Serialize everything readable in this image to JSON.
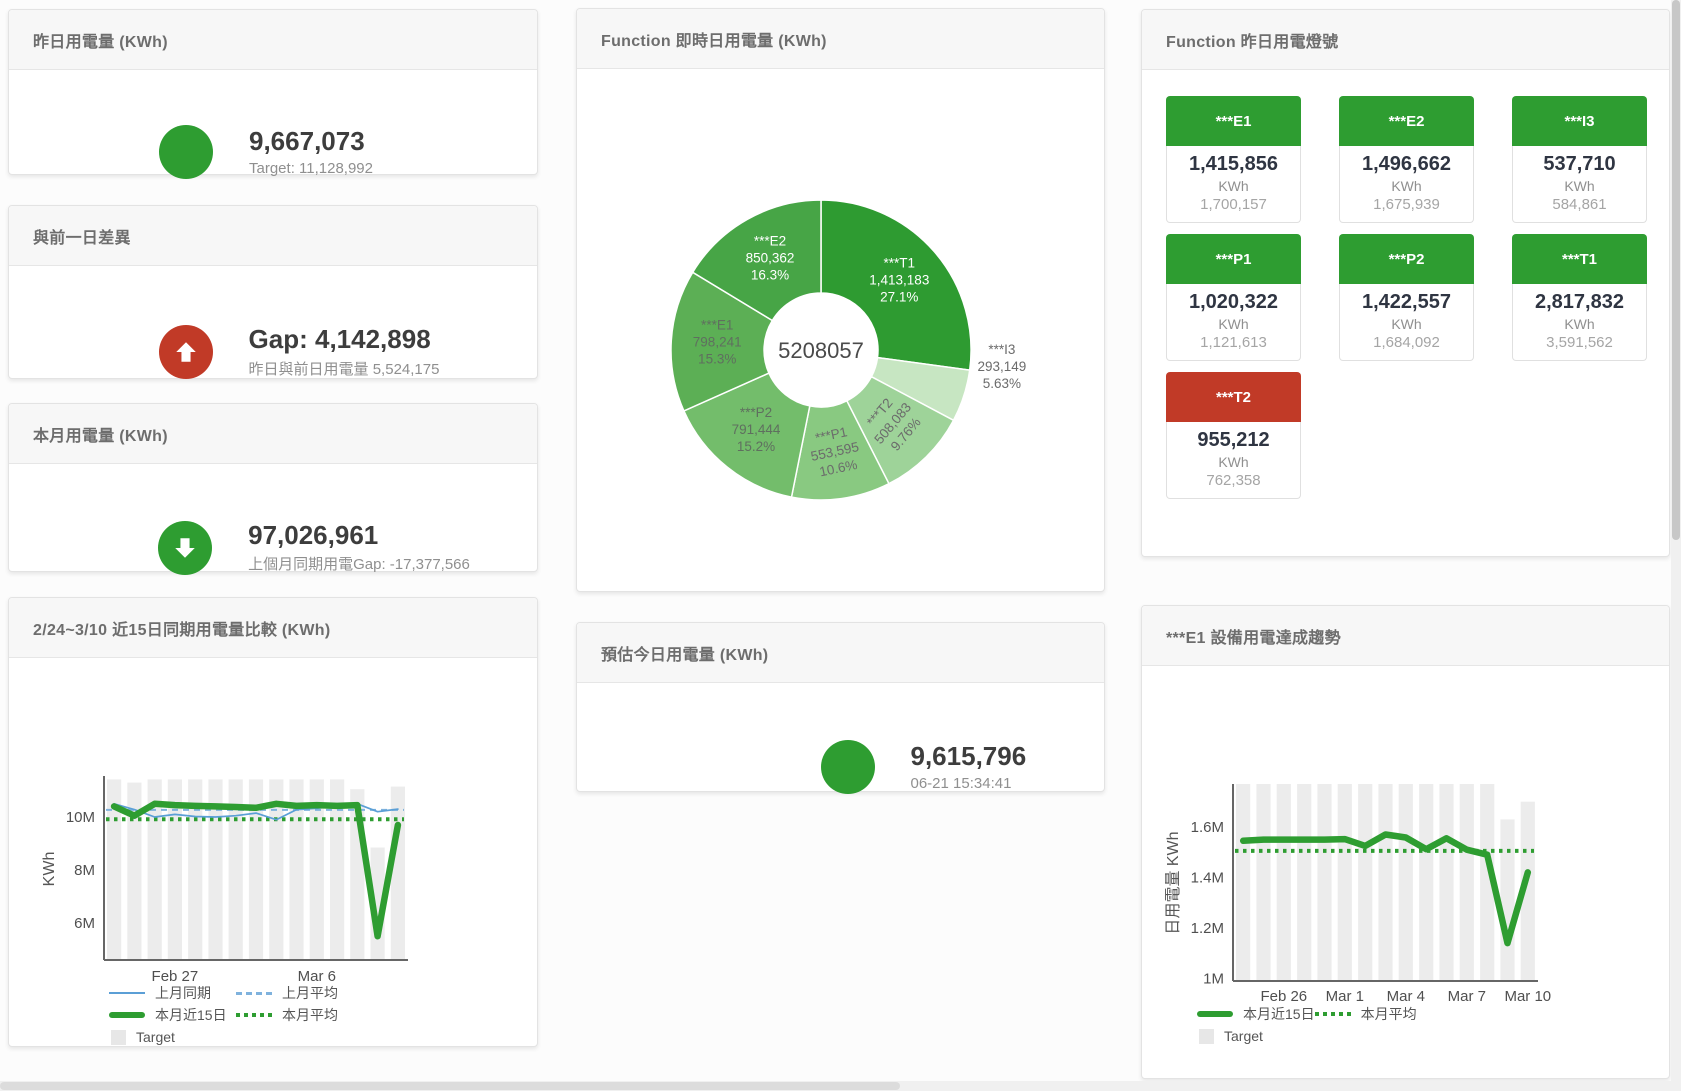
{
  "cards": {
    "yesterday": {
      "title": "昨日用電量 (KWh)",
      "value": "9,667,073",
      "subtitle": "Target: 11,128,992"
    },
    "prev_day_gap": {
      "title": "與前一日差異",
      "value": "Gap: 4,142,898",
      "subtitle": "昨日與前日用電量 5,524,175"
    },
    "month": {
      "title": "本月用電量 (KWh)",
      "value": "97,026,961",
      "subtitle": "上個月同期用電Gap: -17,377,566"
    },
    "estimate": {
      "title": "預估今日用電量 (KWh)",
      "value": "9,615,796",
      "subtitle": "06-21 15:34:41"
    },
    "donut": {
      "title": "Function 即時日用電量 (KWh)"
    },
    "lights": {
      "title": "Function 昨日用電燈號"
    },
    "compare": {
      "title": "2/24~3/10 近15日同期用電量比較 (KWh)"
    },
    "trend": {
      "title": "***E1 設備用電達成趨勢"
    }
  },
  "lights": [
    {
      "label": "***E1",
      "value": "1,415,856",
      "unit": "KWh",
      "target": "1,700,157",
      "status": "green"
    },
    {
      "label": "***E2",
      "value": "1,496,662",
      "unit": "KWh",
      "target": "1,675,939",
      "status": "green"
    },
    {
      "label": "***I3",
      "value": "537,710",
      "unit": "KWh",
      "target": "584,861",
      "status": "green"
    },
    {
      "label": "***P1",
      "value": "1,020,322",
      "unit": "KWh",
      "target": "1,121,613",
      "status": "green"
    },
    {
      "label": "***P2",
      "value": "1,422,557",
      "unit": "KWh",
      "target": "1,684,092",
      "status": "green"
    },
    {
      "label": "***T1",
      "value": "2,817,832",
      "unit": "KWh",
      "target": "3,591,562",
      "status": "green"
    },
    {
      "label": "***T2",
      "value": "955,212",
      "unit": "KWh",
      "target": "762,358",
      "status": "red"
    }
  ],
  "colors": {
    "green": "#2e9d31",
    "red": "#c13a27",
    "blue_line": "#5b9fd6",
    "blue_dash": "#7fb2dd",
    "target_bar": "#ececec",
    "axis": "#666666",
    "tick_text": "#4f4f4f"
  },
  "chart_data": [
    {
      "type": "pie",
      "title": "Function 即時日用電量 (KWh)",
      "center_label": "5208057",
      "legend_position": "none",
      "slices": [
        {
          "name": "***T1",
          "value": 1413183,
          "value_label": "1,413,183",
          "pct": "27.1%",
          "color": "#2e9b31",
          "text": "#ffffff"
        },
        {
          "name": "***I3",
          "value": 293149,
          "value_label": "293,149",
          "pct": "5.63%",
          "color": "#c7e6c2",
          "text": "#6b6b6b",
          "outside": true,
          "label_dy": -40
        },
        {
          "name": "***T2",
          "value": 508083,
          "value_label": "508,083",
          "pct": "9.76%",
          "color": "#9ed399",
          "text": "#6b6b6b",
          "rotate": -50
        },
        {
          "name": "***P1",
          "value": 553595,
          "value_label": "553,595",
          "pct": "10.6%",
          "color": "#89c981",
          "text": "#6b6b6b",
          "rotate": -12
        },
        {
          "name": "***P2",
          "value": 791444,
          "value_label": "791,444",
          "pct": "15.2%",
          "color": "#73bd6b",
          "text": "#5f6f5f"
        },
        {
          "name": "***E1",
          "value": 798241,
          "value_label": "798,241",
          "pct": "15.3%",
          "color": "#5caf55",
          "text": "#5f6f5f"
        },
        {
          "name": "***E2",
          "value": 850362,
          "value_label": "850,362",
          "pct": "16.3%",
          "color": "#47a546",
          "text": "#ffffff"
        }
      ]
    },
    {
      "type": "line",
      "title": "2/24~3/10 近15日同期用電量比較 (KWh)",
      "ylabel": "KWh",
      "ylim": [
        4.6,
        11.55
      ],
      "unit": "M",
      "grid": false,
      "y_ticks": [
        {
          "v": 6,
          "label": "6M"
        },
        {
          "v": 8,
          "label": "8M"
        },
        {
          "v": 10,
          "label": "10M"
        }
      ],
      "x_ticks": [
        {
          "index": 3,
          "label": "Feb 27"
        },
        {
          "index": 10,
          "label": "Mar 6"
        }
      ],
      "bar_color": "#ececec",
      "target_bars": [
        11.42,
        11.3,
        11.42,
        11.42,
        11.42,
        11.42,
        11.42,
        11.42,
        11.42,
        11.42,
        11.42,
        11.42,
        11.05,
        8.85,
        11.15
      ],
      "series": [
        {
          "name": "上月同期",
          "style": "thin",
          "color": "#5b9fd6",
          "values": [
            10.5,
            10.28,
            10.0,
            10.1,
            10.02,
            10.0,
            10.05,
            10.15,
            9.9,
            10.28,
            10.33,
            10.42,
            10.5,
            10.2,
            10.3
          ]
        },
        {
          "name": "本月近15日",
          "style": "thick",
          "color": "#2e9d31",
          "values": [
            10.4,
            10.05,
            10.5,
            10.45,
            10.42,
            10.4,
            10.38,
            10.35,
            10.5,
            10.42,
            10.45,
            10.42,
            10.45,
            5.5,
            9.7
          ]
        }
      ],
      "avg_lines": [
        {
          "name": "上月平均",
          "style": "dashed",
          "color": "#7fb2dd",
          "v": 10.27
        },
        {
          "name": "本月平均",
          "style": "dotted",
          "color": "#2e9d31",
          "v": 9.92
        }
      ],
      "legend_rows": [
        [
          {
            "swatch": "thin",
            "color": "#5b9fd6",
            "label": "上月同期"
          },
          {
            "swatch": "dashed",
            "color": "#7fb2dd",
            "label": "上月平均"
          }
        ],
        [
          {
            "swatch": "thick",
            "color": "#2e9d31",
            "label": "本月近15日"
          },
          {
            "swatch": "dotted",
            "color": "#2e9d31",
            "label": "本月平均"
          }
        ],
        [
          {
            "swatch": "box",
            "color": "#e7e7e7",
            "label": "Target"
          }
        ]
      ]
    },
    {
      "type": "line",
      "title": "***E1 設備用電達成趨勢",
      "ylabel": "日用電量 KWh",
      "ylim": [
        0.99,
        1.77
      ],
      "unit": "M",
      "grid": false,
      "y_ticks": [
        {
          "v": 1,
          "label": "1M"
        },
        {
          "v": 1.2,
          "label": "1.2M"
        },
        {
          "v": 1.4,
          "label": "1.4M"
        },
        {
          "v": 1.6,
          "label": "1.6M"
        }
      ],
      "x_ticks": [
        {
          "index": 2,
          "label": "Feb 26"
        },
        {
          "index": 5,
          "label": "Mar 1"
        },
        {
          "index": 8,
          "label": "Mar 4"
        },
        {
          "index": 11,
          "label": "Mar 7"
        },
        {
          "index": 14,
          "label": "Mar 10"
        }
      ],
      "bar_color": "#ececec",
      "target_bars": [
        1.78,
        1.78,
        1.78,
        1.78,
        1.78,
        1.78,
        1.78,
        1.78,
        1.78,
        1.78,
        1.78,
        1.78,
        1.78,
        1.63,
        1.7
      ],
      "series": [
        {
          "name": "本月近15日",
          "style": "thick",
          "color": "#2e9d31",
          "values": [
            1.545,
            1.55,
            1.55,
            1.55,
            1.55,
            1.552,
            1.525,
            1.57,
            1.558,
            1.512,
            1.555,
            1.51,
            1.49,
            1.14,
            1.42
          ]
        }
      ],
      "avg_lines": [
        {
          "name": "本月平均",
          "style": "dotted",
          "color": "#2e9d31",
          "v": 1.505
        }
      ],
      "legend_rows": [
        [
          {
            "swatch": "thick",
            "color": "#2e9d31",
            "label": "本月近15日"
          },
          {
            "swatch": "dotted",
            "color": "#2e9d31",
            "label": "本月平均"
          }
        ],
        [
          {
            "swatch": "box",
            "color": "#e7e7e7",
            "label": "Target"
          }
        ]
      ]
    }
  ]
}
